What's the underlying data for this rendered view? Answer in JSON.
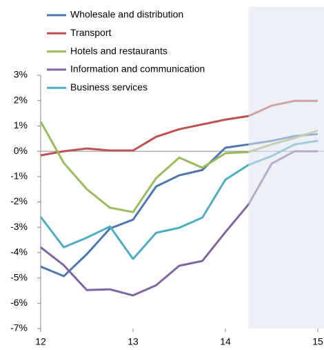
{
  "chart_data": {
    "type": "line",
    "x": [
      12,
      12.25,
      12.5,
      12.75,
      13,
      13.25,
      13.5,
      13.75,
      14,
      14.25,
      14.5,
      14.75,
      15
    ],
    "series": [
      {
        "name": "Wholesale and distribution",
        "color": "#4a76b2",
        "values": [
          -4.55,
          -4.93,
          -4.06,
          -3.05,
          -2.7,
          -1.39,
          -0.95,
          -0.74,
          0.14,
          0.27,
          0.41,
          0.6,
          0.68
        ]
      },
      {
        "name": "Transport",
        "color": "#c0504d",
        "values": [
          -0.16,
          0,
          0.11,
          0.03,
          0.03,
          0.57,
          0.87,
          1.06,
          1.25,
          1.39,
          1.8,
          1.99,
          1.99
        ]
      },
      {
        "name": "Hotels and restaurants",
        "color": "#9bbb59",
        "values": [
          1.17,
          -0.46,
          -1.5,
          -2.23,
          -2.4,
          -1.06,
          -0.25,
          -0.65,
          -0.08,
          -0.03,
          0.27,
          0.52,
          0.82
        ]
      },
      {
        "name": "Information and communication",
        "color": "#8064a2",
        "values": [
          -3.79,
          -4.5,
          -5.48,
          -5.45,
          -5.69,
          -5.29,
          -4.52,
          -4.33,
          -3.19,
          -2.1,
          -0.49,
          0,
          0
        ]
      },
      {
        "name": "Business services",
        "color": "#4bacc6",
        "values": [
          -2.59,
          -3.79,
          -3.41,
          -2.97,
          -4.25,
          -3.22,
          -3.02,
          -2.62,
          -1.12,
          -0.54,
          -0.19,
          0.27,
          0.41
        ]
      }
    ],
    "xlim": [
      12,
      15
    ],
    "xticks": [
      12,
      13,
      14,
      15
    ],
    "ylim": [
      -7,
      3
    ],
    "yticks": [
      {
        "value": 3,
        "label": "3%"
      },
      {
        "value": 2,
        "label": "2%"
      },
      {
        "value": 1,
        "label": "1%"
      },
      {
        "value": 0,
        "label": "0%"
      },
      {
        "value": -1,
        "label": "-1%"
      },
      {
        "value": -2,
        "label": "-2%"
      },
      {
        "value": -3,
        "label": "-3%"
      },
      {
        "value": -4,
        "label": "-4%"
      },
      {
        "value": -5,
        "label": "-5%"
      },
      {
        "value": -6,
        "label": "-6%"
      },
      {
        "value": -7,
        "label": "-7%"
      }
    ],
    "shaded_region": [
      14.25,
      15
    ],
    "legend": "upper left"
  }
}
